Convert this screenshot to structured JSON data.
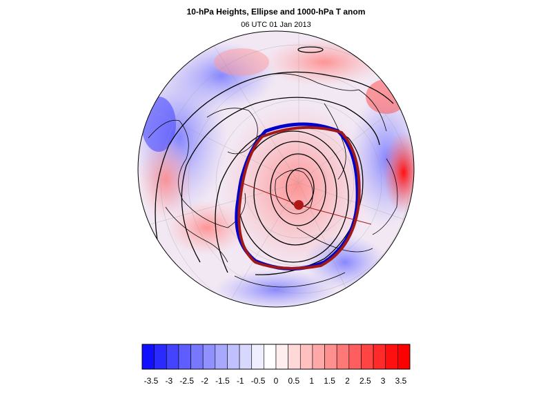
{
  "header": {
    "title": "10-hPa Heights, Ellipse and 1000-hPa T anom",
    "subtitle": "06 UTC 01 Jan 2013"
  },
  "map": {
    "projection": "north polar orthographic",
    "field": "1000-hPa temperature anomaly (shaded)",
    "contours": "10-hPa geopotential heights (black)",
    "ellipse_colors": {
      "fitted_ellipse": "#0000cc",
      "vortex_edge": "#a01818"
    },
    "centroid_color": "#b01818"
  },
  "colorbar": {
    "colors": [
      "#1010ff",
      "#2a2aff",
      "#4444ff",
      "#5e5eff",
      "#7878ff",
      "#9090ff",
      "#a8a8ff",
      "#c0c0ff",
      "#d8d8ff",
      "#eeeeff",
      "#ffffff",
      "#ffeeee",
      "#ffd8d8",
      "#ffc0c0",
      "#ffa8a8",
      "#ff9090",
      "#ff7878",
      "#ff5e5e",
      "#ff4444",
      "#ff2a2a",
      "#ff1010",
      "#ff0000"
    ],
    "labels": [
      "-3.5",
      "-3",
      "-2.5",
      "-2",
      "-1.5",
      "-1",
      "-0.5",
      "0",
      "0.5",
      "1",
      "1.5",
      "2",
      "2.5",
      "3",
      "3.5"
    ]
  }
}
